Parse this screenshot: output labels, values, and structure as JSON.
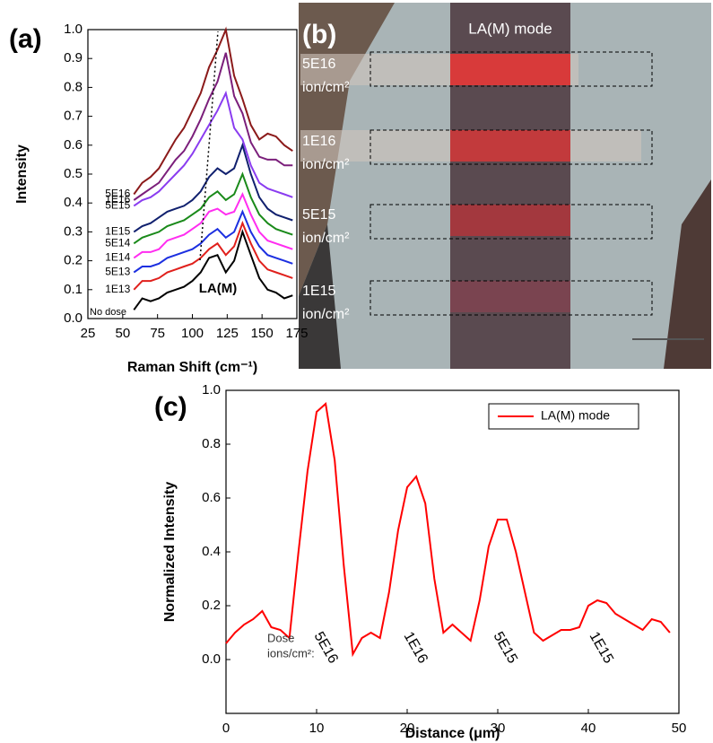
{
  "chart_data": [
    {
      "type": "line",
      "panel_label": "(a)",
      "xlabel": "Raman Shift (cm⁻¹)",
      "ylabel": "Intensity",
      "annotation": "LA(M)",
      "xlim": [
        25,
        175
      ],
      "xticks": [
        25,
        50,
        75,
        100,
        125,
        150,
        175
      ],
      "ylim": [
        0,
        1.0
      ],
      "yticks": [
        {
          "value": 0,
          "label": "0.0"
        },
        0.1,
        0.2,
        0.3,
        0.4,
        0.5,
        0.6,
        0.7,
        0.8,
        0.9,
        {
          "value": 1.0,
          "label": "1.0"
        }
      ],
      "x": [
        58,
        64,
        70,
        76,
        82,
        88,
        94,
        100,
        106,
        112,
        118,
        124,
        130,
        136,
        142,
        148,
        154,
        160,
        166,
        172
      ],
      "series": [
        {
          "name": "No dose",
          "color": "#000000",
          "values": [
            0.03,
            0.07,
            0.06,
            0.07,
            0.09,
            0.1,
            0.11,
            0.13,
            0.16,
            0.21,
            0.22,
            0.16,
            0.2,
            0.3,
            0.22,
            0.14,
            0.1,
            0.09,
            0.07,
            0.08
          ]
        },
        {
          "name": "1E13",
          "color": "#e0201c",
          "values": [
            0.1,
            0.13,
            0.13,
            0.14,
            0.16,
            0.17,
            0.18,
            0.19,
            0.21,
            0.24,
            0.26,
            0.22,
            0.25,
            0.33,
            0.26,
            0.2,
            0.17,
            0.16,
            0.15,
            0.14
          ]
        },
        {
          "name": "5E13",
          "color": "#1c2fe0",
          "values": [
            0.16,
            0.18,
            0.18,
            0.19,
            0.21,
            0.22,
            0.23,
            0.24,
            0.26,
            0.29,
            0.31,
            0.28,
            0.3,
            0.37,
            0.3,
            0.25,
            0.22,
            0.21,
            0.2,
            0.19
          ]
        },
        {
          "name": "1E14",
          "color": "#ff2df0",
          "values": [
            0.21,
            0.23,
            0.23,
            0.24,
            0.27,
            0.28,
            0.29,
            0.31,
            0.33,
            0.37,
            0.38,
            0.36,
            0.37,
            0.43,
            0.36,
            0.3,
            0.27,
            0.26,
            0.25,
            0.24
          ]
        },
        {
          "name": "5E14",
          "color": "#1a8a1a",
          "values": [
            0.26,
            0.28,
            0.29,
            0.3,
            0.32,
            0.33,
            0.34,
            0.36,
            0.38,
            0.42,
            0.44,
            0.41,
            0.43,
            0.5,
            0.42,
            0.36,
            0.33,
            0.31,
            0.3,
            0.29
          ]
        },
        {
          "name": "1E15",
          "color": "#10206e",
          "values": [
            0.3,
            0.32,
            0.33,
            0.35,
            0.37,
            0.38,
            0.39,
            0.41,
            0.44,
            0.49,
            0.52,
            0.5,
            0.52,
            0.6,
            0.5,
            0.42,
            0.38,
            0.36,
            0.35,
            0.34
          ]
        },
        {
          "name": "5E15",
          "color": "#8a3cf0",
          "values": [
            0.39,
            0.41,
            0.42,
            0.44,
            0.47,
            0.5,
            0.53,
            0.57,
            0.62,
            0.67,
            0.72,
            0.78,
            0.66,
            0.62,
            0.53,
            0.47,
            0.45,
            0.44,
            0.43,
            0.42
          ]
        },
        {
          "name": "1E16",
          "color": "#7b1f7b",
          "values": [
            0.41,
            0.43,
            0.45,
            0.47,
            0.51,
            0.55,
            0.58,
            0.63,
            0.69,
            0.76,
            0.82,
            0.92,
            0.77,
            0.71,
            0.61,
            0.56,
            0.55,
            0.55,
            0.53,
            0.53
          ]
        },
        {
          "name": "5E16",
          "color": "#8b1a1a",
          "values": [
            0.43,
            0.47,
            0.49,
            0.52,
            0.57,
            0.62,
            0.66,
            0.72,
            0.78,
            0.87,
            0.93,
            1.0,
            0.84,
            0.76,
            0.67,
            0.62,
            0.64,
            0.63,
            0.6,
            0.58
          ]
        }
      ]
    },
    {
      "type": "line",
      "panel_label": "(c)",
      "xlabel": "Distance (μm)",
      "ylabel": "Normalized Intensity",
      "legend": "upper right",
      "dose_title": [
        "Dose",
        "ions/cm²:"
      ],
      "dose_labels": [
        "5E16",
        "1E16",
        "5E15",
        "1E15"
      ],
      "xlim": [
        0,
        50
      ],
      "xticks": [
        0,
        10,
        20,
        30,
        40,
        50
      ],
      "ylim": [
        -0.2,
        1.0
      ],
      "yticks": [
        {
          "value": 0,
          "label": "0.0"
        },
        0.2,
        0.4,
        0.6,
        0.8,
        {
          "value": 1.0,
          "label": "1.0"
        }
      ],
      "x": [
        0,
        1,
        2,
        3,
        4,
        5,
        6,
        7,
        8,
        9,
        10,
        11,
        12,
        13,
        14,
        15,
        16,
        17,
        18,
        19,
        20,
        21,
        22,
        23,
        24,
        25,
        26,
        27,
        28,
        29,
        30,
        31,
        32,
        33,
        34,
        35,
        36,
        37,
        38,
        39,
        40,
        41,
        42,
        43,
        44,
        45,
        46,
        47,
        48,
        49
      ],
      "series": [
        {
          "name": "LA(M) mode",
          "color": "#ff0000",
          "values": [
            0.06,
            0.1,
            0.13,
            0.15,
            0.18,
            0.12,
            0.11,
            0.08,
            0.4,
            0.7,
            0.92,
            0.95,
            0.74,
            0.35,
            0.02,
            0.08,
            0.1,
            0.08,
            0.25,
            0.48,
            0.64,
            0.68,
            0.58,
            0.3,
            0.1,
            0.13,
            0.1,
            0.07,
            0.22,
            0.42,
            0.52,
            0.52,
            0.4,
            0.25,
            0.1,
            0.07,
            0.09,
            0.11,
            0.11,
            0.12,
            0.2,
            0.22,
            0.21,
            0.17,
            0.15,
            0.13,
            0.11,
            0.15,
            0.14,
            0.1
          ]
        }
      ]
    }
  ],
  "image_panel": {
    "panel_label": "(b)",
    "title": "LA(M) mode",
    "regions": [
      {
        "dose": "5E16",
        "unit": "ion/cm²"
      },
      {
        "dose": "1E16",
        "unit": "ion/cm²"
      },
      {
        "dose": "5E15",
        "unit": "ion/cm²"
      },
      {
        "dose": "1E15",
        "unit": "ion/cm²"
      }
    ]
  }
}
